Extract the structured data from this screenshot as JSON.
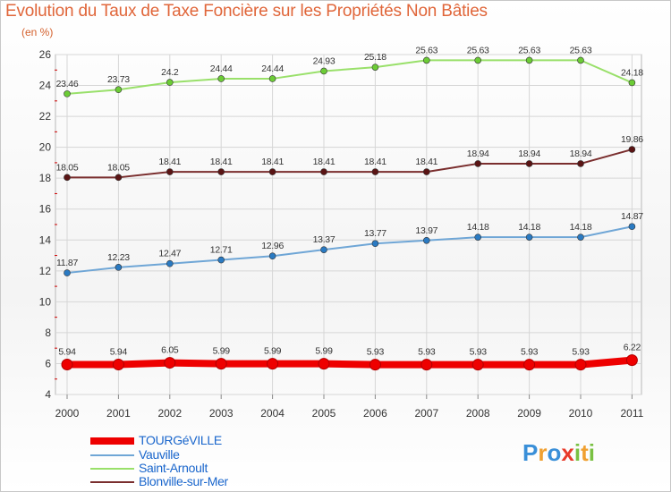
{
  "chart_data": {
    "type": "line",
    "title": "Evolution du Taux de Taxe Foncière sur les Propriétés Non Bâties",
    "ylabel": "(en %)",
    "xlabel": "",
    "categories": [
      "2000",
      "2001",
      "2002",
      "2003",
      "2004",
      "2005",
      "2006",
      "2007",
      "2008",
      "2009",
      "2010",
      "2011"
    ],
    "ylim": [
      4,
      26
    ],
    "yticks": [
      4,
      6,
      8,
      10,
      12,
      14,
      16,
      18,
      20,
      22,
      24,
      26
    ],
    "grid": true,
    "series": [
      {
        "name": "TOURGéVILLE",
        "color": "#ee0000",
        "marker": "#ee0000",
        "values": [
          5.94,
          5.94,
          6.05,
          5.99,
          5.99,
          5.99,
          5.93,
          5.93,
          5.93,
          5.93,
          5.93,
          6.22
        ],
        "labels": [
          "5.94",
          "5.94",
          "6.05",
          "5.99",
          "5.99",
          "5.99",
          "5.93",
          "5.93",
          "5.93",
          "5.93",
          "5.93",
          "6.22"
        ]
      },
      {
        "name": "Vauville",
        "color": "#6fa6d6",
        "marker": "#2a7ac2",
        "values": [
          11.87,
          12.23,
          12.47,
          12.71,
          12.96,
          13.37,
          13.77,
          13.97,
          14.18,
          14.18,
          14.18,
          14.87
        ],
        "labels": [
          "11.87",
          "12.23",
          "12.47",
          "12.71",
          "12.96",
          "13.37",
          "13.77",
          "13.97",
          "14.18",
          "14.18",
          "14.18",
          "14.87"
        ]
      },
      {
        "name": "Saint-Arnoult",
        "color": "#99e06a",
        "marker": "#6ccc36",
        "values": [
          23.46,
          23.73,
          24.2,
          24.44,
          24.44,
          24.93,
          25.18,
          25.63,
          25.63,
          25.63,
          25.63,
          24.18
        ],
        "labels": [
          "23.46",
          "23.73",
          "24.2",
          "24.44",
          "24.44",
          "24.93",
          "25.18",
          "25.63",
          "25.63",
          "25.63",
          "25.63",
          "24.18"
        ]
      },
      {
        "name": "Blonville-sur-Mer",
        "color": "#7a2e2e",
        "marker": "#5a1414",
        "values": [
          18.05,
          18.05,
          18.41,
          18.41,
          18.41,
          18.41,
          18.41,
          18.41,
          18.94,
          18.94,
          18.94,
          19.86
        ],
        "labels": [
          "18.05",
          "18.05",
          "18.41",
          "18.41",
          "18.41",
          "18.41",
          "18.41",
          "18.41",
          "18.94",
          "18.94",
          "18.94",
          "19.86"
        ]
      }
    ],
    "legend_position": "bottom-left"
  },
  "logo": {
    "letters": [
      "P",
      "r",
      "o",
      "x",
      "i",
      "t",
      "i"
    ],
    "colors": [
      "#3a8fd8",
      "#f0a030",
      "#3a8fd8",
      "#e83a2a",
      "#7ac143",
      "#f0a030",
      "#7ac143"
    ]
  }
}
